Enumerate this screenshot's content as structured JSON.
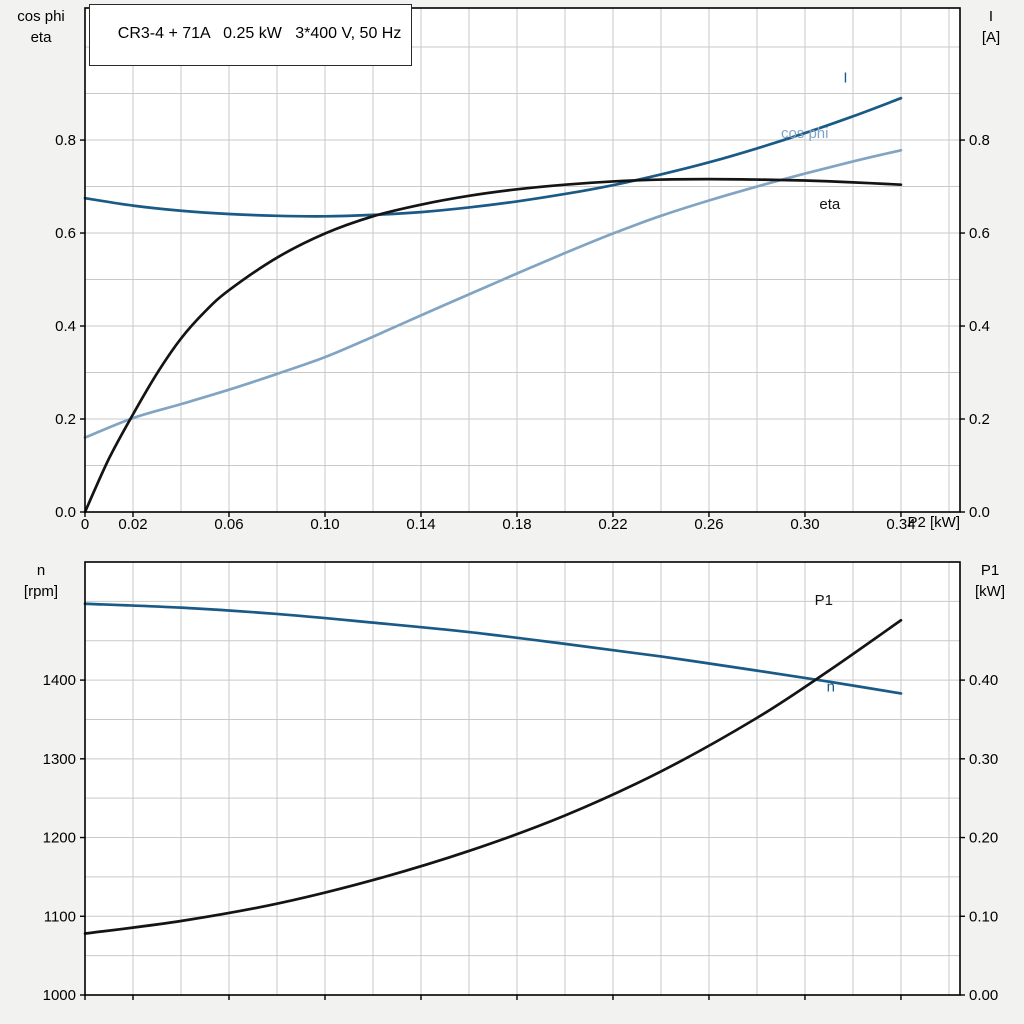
{
  "title_box": {
    "text": "CR3-4 + 71A   0.25 kW   3*400 V, 50 Hz"
  },
  "axis_corner_labels": {
    "top_left": {
      "line1": "cos phi",
      "line2": "eta"
    },
    "top_right": {
      "line1": "I",
      "line2": "[A]"
    },
    "x_label": "P2 [kW]",
    "bottom_left": {
      "line1": "n",
      "line2": "[rpm]"
    },
    "bottom_right": {
      "line1": "P1",
      "line2": "[kW]"
    }
  },
  "colors": {
    "curve_dark_blue": "#1a5a86",
    "curve_light_blue": "#82a4c3",
    "curve_black": "#141414",
    "grid": "#c9c9c9",
    "axis": "#000000",
    "plot_bg": "#ffffff",
    "page_bg": "#f2f2f0"
  },
  "chart_data": [
    {
      "type": "line",
      "title": "CR3-4 + 71A   0.25 kW   3*400 V, 50 Hz",
      "grid": true,
      "legend": "inline-curve-labels",
      "x_axis": {
        "label": "P2 [kW]",
        "min": 0,
        "max": 0.3646,
        "grid_step": 0.02,
        "ticks": [
          {
            "v": 0,
            "t": "0"
          },
          {
            "v": 0.02,
            "t": "0.02"
          },
          {
            "v": 0.06,
            "t": "0.06"
          },
          {
            "v": 0.1,
            "t": "0.10"
          },
          {
            "v": 0.14,
            "t": "0.14"
          },
          {
            "v": 0.18,
            "t": "0.18"
          },
          {
            "v": 0.22,
            "t": "0.22"
          },
          {
            "v": 0.26,
            "t": "0.26"
          },
          {
            "v": 0.3,
            "t": "0.30"
          },
          {
            "v": 0.34,
            "t": "0.34"
          }
        ]
      },
      "y_left": {
        "label": "cos phi / eta",
        "min": 0,
        "max": 1.084,
        "grid_step": 0.1,
        "ticks": [
          {
            "v": 0.0,
            "t": "0.0"
          },
          {
            "v": 0.2,
            "t": "0.2"
          },
          {
            "v": 0.4,
            "t": "0.4"
          },
          {
            "v": 0.6,
            "t": "0.6"
          },
          {
            "v": 0.8,
            "t": "0.8"
          }
        ]
      },
      "y_right": {
        "label": "I [A]",
        "min": 0,
        "max": 1.084,
        "ticks": [
          {
            "v": 0.0,
            "t": "0.0"
          },
          {
            "v": 0.2,
            "t": "0.2"
          },
          {
            "v": 0.4,
            "t": "0.4"
          },
          {
            "v": 0.6,
            "t": "0.6"
          },
          {
            "v": 0.8,
            "t": "0.8"
          }
        ]
      },
      "series": [
        {
          "name": "I",
          "axis": "left",
          "color_key": "curve_dark_blue",
          "label": {
            "x": 0.316,
            "y": 0.935
          },
          "points": [
            [
              0,
              0.675
            ],
            [
              0.02,
              0.659
            ],
            [
              0.04,
              0.648
            ],
            [
              0.06,
              0.641
            ],
            [
              0.08,
              0.637
            ],
            [
              0.1,
              0.636
            ],
            [
              0.12,
              0.639
            ],
            [
              0.14,
              0.645
            ],
            [
              0.16,
              0.655
            ],
            [
              0.18,
              0.668
            ],
            [
              0.2,
              0.684
            ],
            [
              0.22,
              0.703
            ],
            [
              0.24,
              0.726
            ],
            [
              0.26,
              0.752
            ],
            [
              0.28,
              0.782
            ],
            [
              0.3,
              0.815
            ],
            [
              0.32,
              0.851
            ],
            [
              0.34,
              0.89
            ]
          ]
        },
        {
          "name": "cos phi",
          "axis": "left",
          "color_key": "curve_light_blue",
          "label": {
            "x": 0.29,
            "y": 0.815
          },
          "points": [
            [
              0,
              0.16
            ],
            [
              0.02,
              0.202
            ],
            [
              0.04,
              0.232
            ],
            [
              0.06,
              0.263
            ],
            [
              0.08,
              0.297
            ],
            [
              0.1,
              0.333
            ],
            [
              0.12,
              0.377
            ],
            [
              0.14,
              0.423
            ],
            [
              0.16,
              0.468
            ],
            [
              0.18,
              0.513
            ],
            [
              0.2,
              0.557
            ],
            [
              0.22,
              0.599
            ],
            [
              0.24,
              0.637
            ],
            [
              0.26,
              0.67
            ],
            [
              0.28,
              0.7
            ],
            [
              0.3,
              0.728
            ],
            [
              0.32,
              0.754
            ],
            [
              0.34,
              0.778
            ]
          ]
        },
        {
          "name": "eta",
          "axis": "left",
          "color_key": "curve_black",
          "label": {
            "x": 0.306,
            "y": 0.662
          },
          "points": [
            [
              0,
              0.0
            ],
            [
              0.01,
              0.115
            ],
            [
              0.02,
              0.21
            ],
            [
              0.03,
              0.298
            ],
            [
              0.04,
              0.373
            ],
            [
              0.05,
              0.431
            ],
            [
              0.06,
              0.477
            ],
            [
              0.08,
              0.547
            ],
            [
              0.1,
              0.599
            ],
            [
              0.12,
              0.636
            ],
            [
              0.14,
              0.661
            ],
            [
              0.16,
              0.68
            ],
            [
              0.18,
              0.694
            ],
            [
              0.2,
              0.704
            ],
            [
              0.22,
              0.711
            ],
            [
              0.24,
              0.715
            ],
            [
              0.26,
              0.716
            ],
            [
              0.28,
              0.715
            ],
            [
              0.3,
              0.713
            ],
            [
              0.32,
              0.709
            ],
            [
              0.34,
              0.704
            ]
          ]
        }
      ]
    },
    {
      "type": "line",
      "title": "",
      "grid": true,
      "legend": "inline-curve-labels",
      "x_axis": {
        "label": "P2 [kW]",
        "min": 0,
        "max": 0.3646,
        "grid_step": 0.02,
        "ticks": [
          {
            "v": 0,
            "t": ""
          },
          {
            "v": 0.02,
            "t": ""
          },
          {
            "v": 0.06,
            "t": ""
          },
          {
            "v": 0.1,
            "t": ""
          },
          {
            "v": 0.14,
            "t": ""
          },
          {
            "v": 0.18,
            "t": ""
          },
          {
            "v": 0.22,
            "t": ""
          },
          {
            "v": 0.26,
            "t": ""
          },
          {
            "v": 0.3,
            "t": ""
          },
          {
            "v": 0.34,
            "t": ""
          }
        ]
      },
      "y_left": {
        "label": "n [rpm]",
        "min": 1000,
        "max": 1550,
        "grid_step": 50,
        "ticks": [
          {
            "v": 1000,
            "t": "1000"
          },
          {
            "v": 1100,
            "t": "1100"
          },
          {
            "v": 1200,
            "t": "1200"
          },
          {
            "v": 1300,
            "t": "1300"
          },
          {
            "v": 1400,
            "t": "1400"
          }
        ]
      },
      "y_right": {
        "label": "P1 [kW]",
        "min": 0,
        "max": 0.55,
        "ticks": [
          {
            "v": 0.0,
            "t": "0.00"
          },
          {
            "v": 0.1,
            "t": "0.10"
          },
          {
            "v": 0.2,
            "t": "0.20"
          },
          {
            "v": 0.3,
            "t": "0.30"
          },
          {
            "v": 0.4,
            "t": "0.40"
          }
        ]
      },
      "series": [
        {
          "name": "n",
          "axis": "left",
          "color_key": "curve_dark_blue",
          "label": {
            "x": 0.309,
            "y": 1392
          },
          "points": [
            [
              0,
              1497
            ],
            [
              0.04,
              1492
            ],
            [
              0.08,
              1484
            ],
            [
              0.12,
              1473
            ],
            [
              0.16,
              1461
            ],
            [
              0.2,
              1446
            ],
            [
              0.24,
              1430
            ],
            [
              0.28,
              1412
            ],
            [
              0.31,
              1398
            ],
            [
              0.34,
              1383
            ]
          ]
        },
        {
          "name": "P1",
          "axis": "right",
          "color_key": "curve_black",
          "label": {
            "x": 0.304,
            "y": 0.502
          },
          "points": [
            [
              0,
              0.078
            ],
            [
              0.04,
              0.094
            ],
            [
              0.08,
              0.116
            ],
            [
              0.12,
              0.146
            ],
            [
              0.16,
              0.183
            ],
            [
              0.2,
              0.228
            ],
            [
              0.24,
              0.284
            ],
            [
              0.28,
              0.352
            ],
            [
              0.31,
              0.412
            ],
            [
              0.34,
              0.476
            ]
          ]
        }
      ]
    }
  ]
}
